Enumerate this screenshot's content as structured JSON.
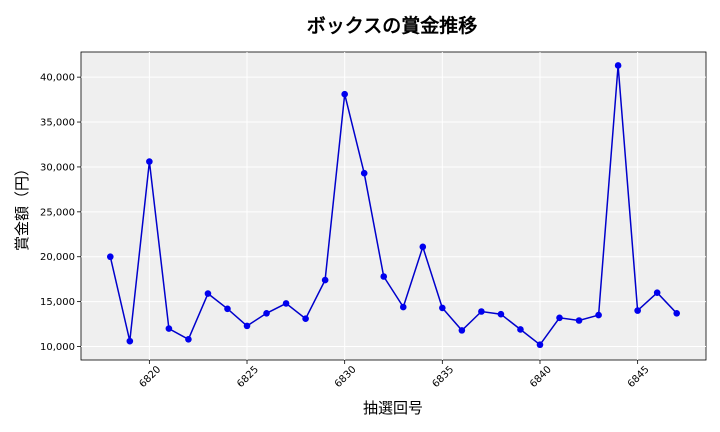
{
  "chart_data": {
    "type": "line",
    "title": "ボックスの賞金推移",
    "xlabel": "抽選回号",
    "ylabel": "賞金額（円）",
    "x": [
      6818,
      6819,
      6820,
      6821,
      6822,
      6823,
      6824,
      6825,
      6826,
      6827,
      6828,
      6829,
      6830,
      6831,
      6832,
      6833,
      6834,
      6835,
      6836,
      6837,
      6838,
      6839,
      6840,
      6841,
      6842,
      6843,
      6844,
      6845,
      6846,
      6847
    ],
    "y": [
      20000,
      10600,
      30600,
      12000,
      10800,
      15900,
      14200,
      12300,
      13700,
      14800,
      13100,
      17400,
      38100,
      29300,
      17800,
      14400,
      21100,
      14300,
      11800,
      13900,
      13600,
      11900,
      10200,
      13200,
      12900,
      13500,
      41300,
      14000,
      16000,
      13700
    ],
    "xticks": [
      6820,
      6825,
      6830,
      6835,
      6840,
      6845
    ],
    "xtick_labels": [
      "6820",
      "6825",
      "6830",
      "6835",
      "6840",
      "6845"
    ],
    "yticks": [
      10000,
      15000,
      20000,
      25000,
      30000,
      35000,
      40000
    ],
    "ytick_labels": [
      "10,000",
      "15,000",
      "20,000",
      "25,000",
      "30,000",
      "35,000",
      "40,000"
    ],
    "xlim": [
      6816.5,
      6848.5
    ],
    "ylim": [
      8500,
      42800
    ],
    "grid": true,
    "line_color": "#0000cc",
    "marker_color": "#0000ee",
    "plot_background": "#efefef"
  }
}
